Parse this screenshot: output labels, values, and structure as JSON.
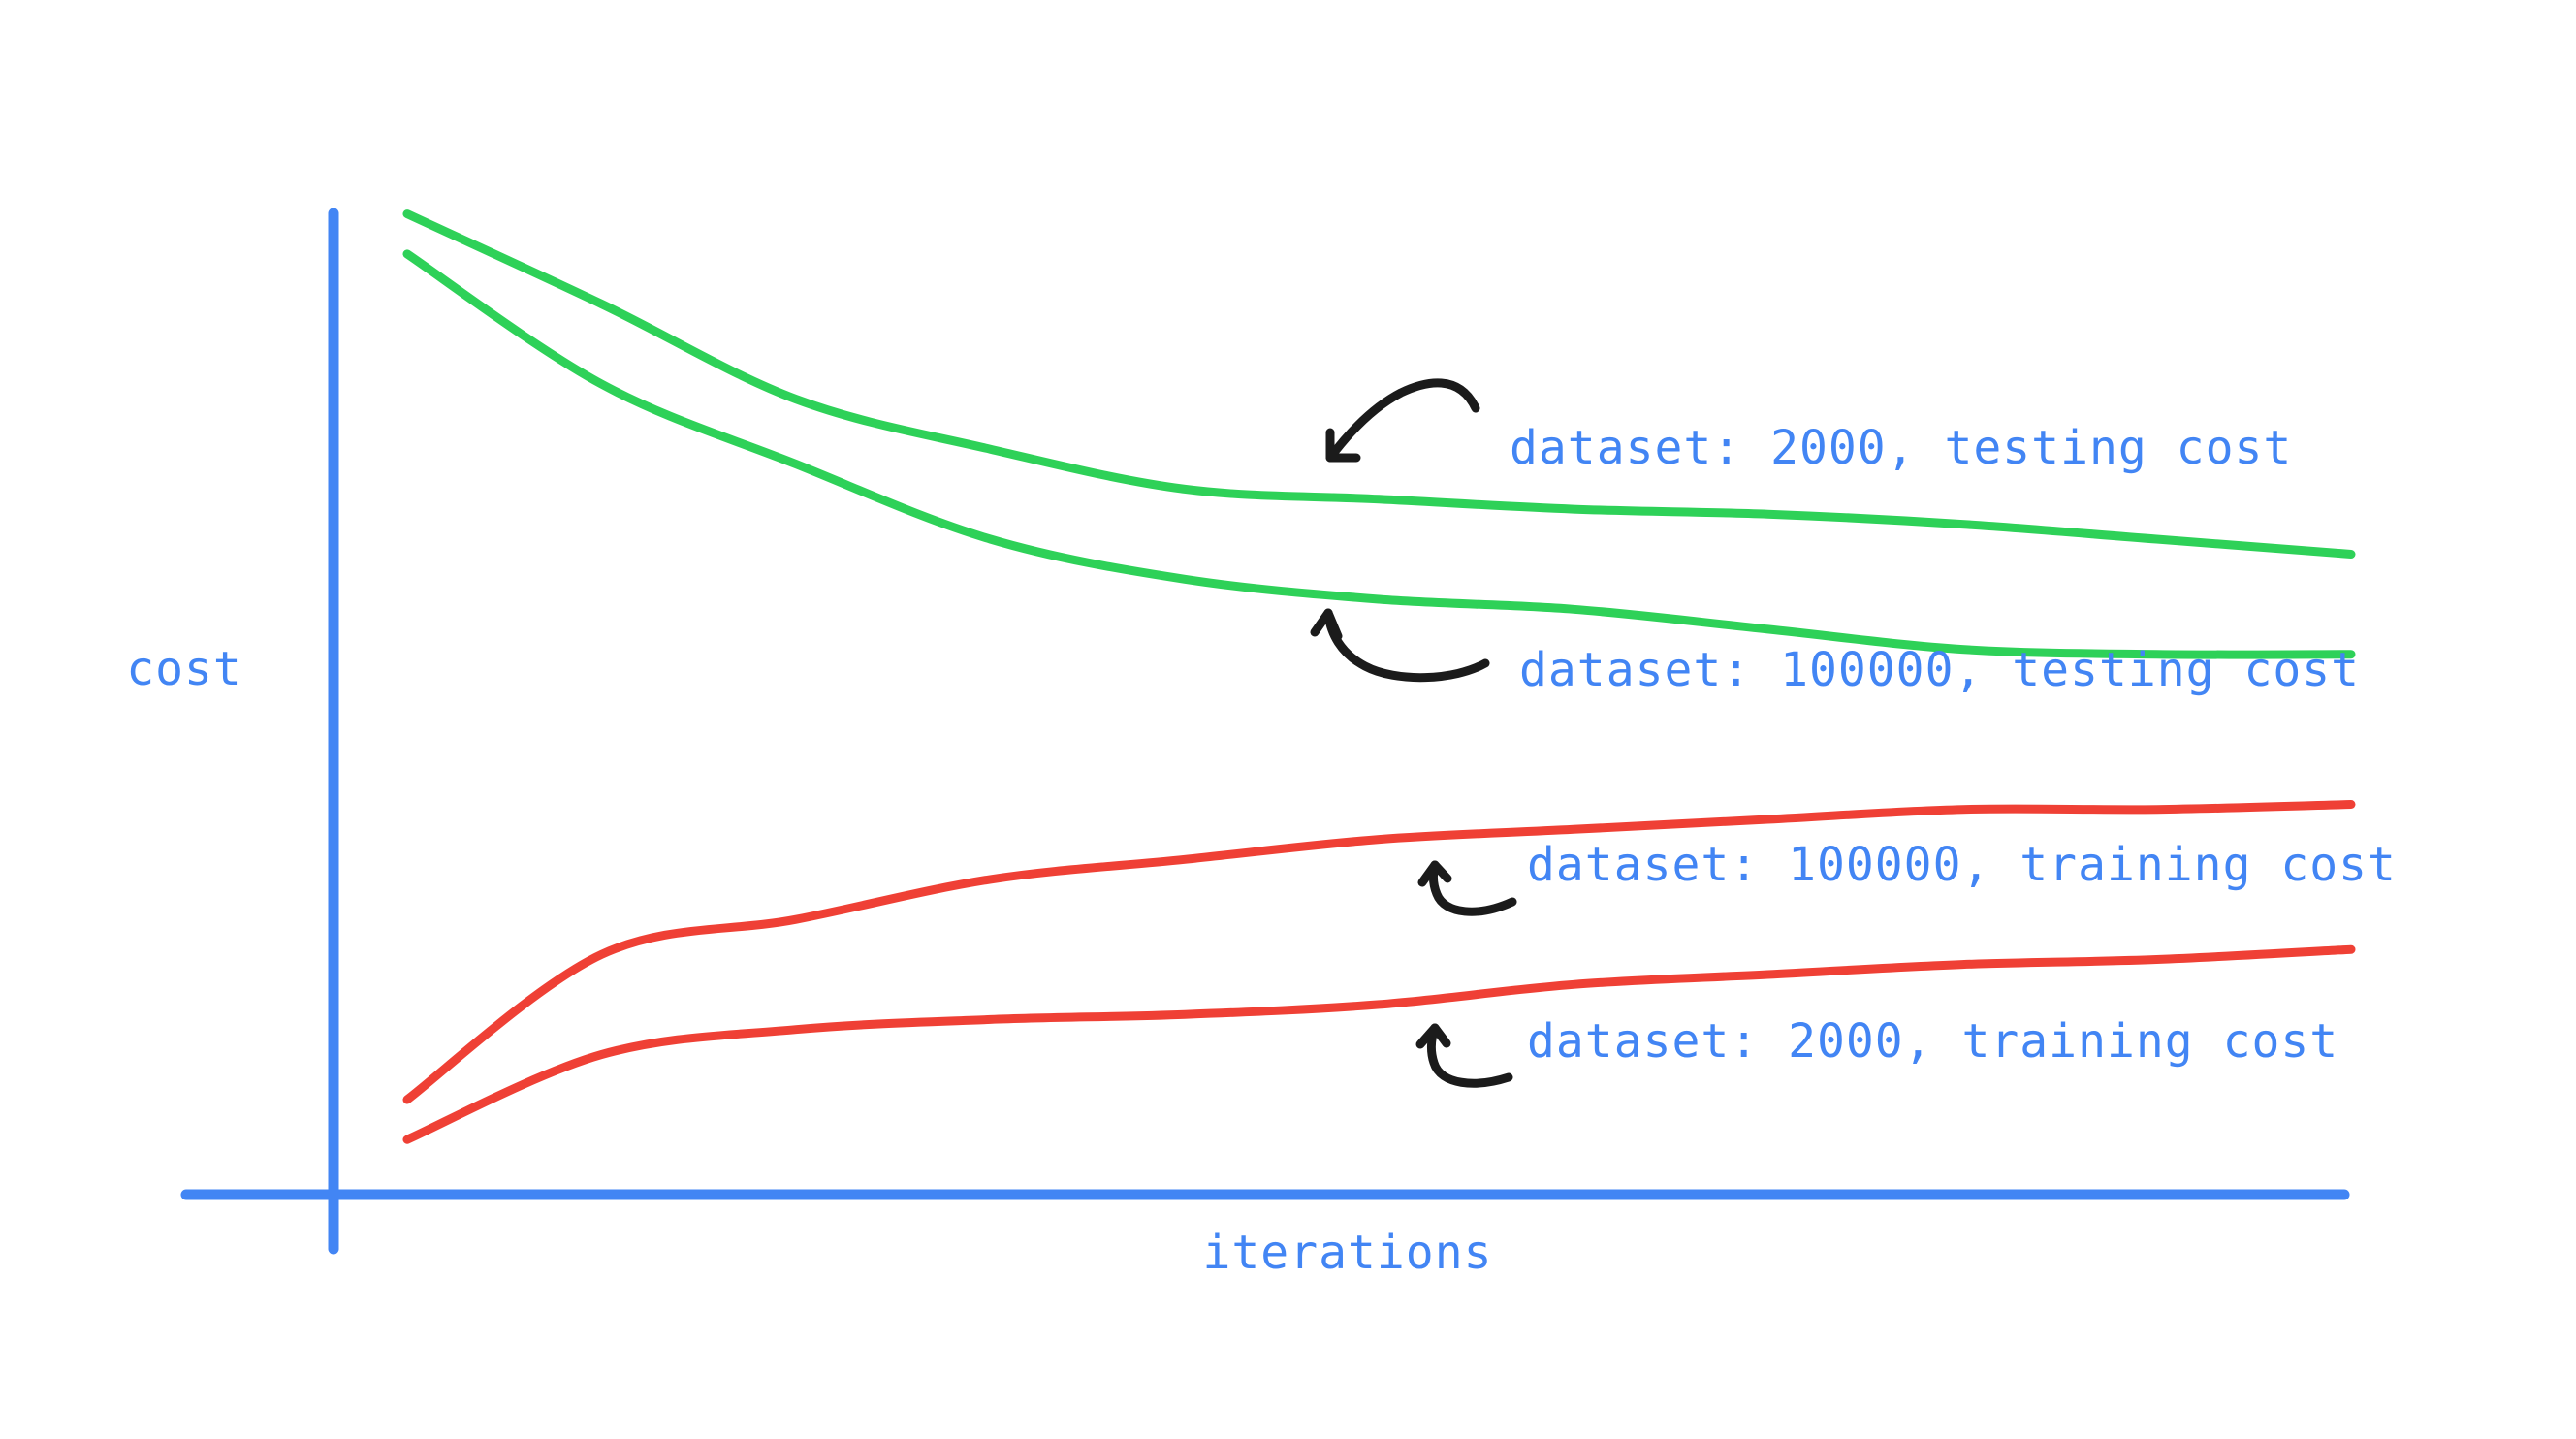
{
  "chart_data": {
    "type": "line",
    "title": "",
    "xlabel": "iterations",
    "ylabel": "cost",
    "x": [
      0,
      1,
      2,
      3,
      4,
      5,
      6,
      7,
      8,
      9,
      10
    ],
    "xlim": [
      0,
      10
    ],
    "ylim": [
      0,
      10
    ],
    "grid": false,
    "legend": "none",
    "series": [
      {
        "name": "dataset: 2000, testing cost",
        "color": "#2ed158",
        "values": [
          9.8,
          8.9,
          7.95,
          7.45,
          7.05,
          6.95,
          6.85,
          6.8,
          6.7,
          6.55,
          6.4
        ]
      },
      {
        "name": "dataset: 100000, testing cost",
        "color": "#2ed158",
        "values": [
          9.4,
          8.1,
          7.3,
          6.55,
          6.15,
          5.95,
          5.85,
          5.65,
          5.45,
          5.4,
          5.4
        ]
      },
      {
        "name": "dataset: 100000, training cost",
        "color": "#ef4035",
        "values": [
          0.95,
          2.4,
          2.75,
          3.15,
          3.35,
          3.55,
          3.65,
          3.75,
          3.85,
          3.85,
          3.9
        ]
      },
      {
        "name": "dataset: 2000, training cost",
        "color": "#ef4035",
        "values": [
          0.55,
          1.4,
          1.65,
          1.75,
          1.8,
          1.9,
          2.1,
          2.2,
          2.3,
          2.35,
          2.45
        ]
      }
    ],
    "annotations": [
      "dataset: 2000, testing cost",
      "dataset: 100000, testing cost",
      "dataset: 100000, training cost",
      "dataset: 2000, training cost"
    ]
  },
  "colors": {
    "axis": "#4285f4",
    "label_text": "#4285f4",
    "arrow": "#1b1b1b",
    "testing": "#2ed158",
    "training": "#ef4035"
  }
}
